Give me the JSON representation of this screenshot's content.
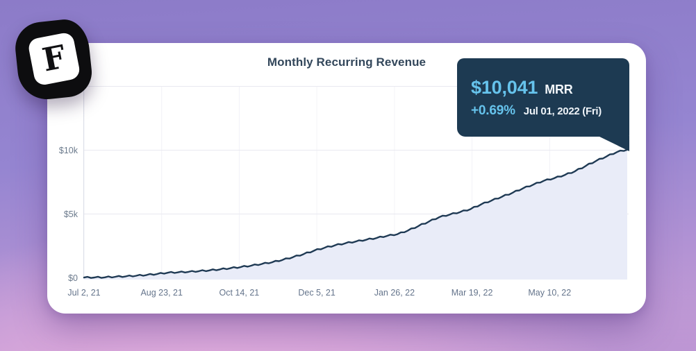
{
  "logo": {
    "letter": "F"
  },
  "tooltip": {
    "value": "$10,041",
    "label": "MRR",
    "delta": "+0.69%",
    "date": "Jul 01, 2022 (Fri)",
    "bg": "#1d3a52",
    "accent": "#66c3ec"
  },
  "chart_data": {
    "type": "area",
    "title": "Monthly Recurring Revenue",
    "x_range_days": 364,
    "ylim": [
      0,
      15200
    ],
    "grid": true,
    "legend_position": "none",
    "x_ticks": [
      {
        "day": 0,
        "label": "Jul 2, 21"
      },
      {
        "day": 52,
        "label": "Aug 23, 21"
      },
      {
        "day": 104,
        "label": "Oct 14, 21"
      },
      {
        "day": 156,
        "label": "Dec 5, 21"
      },
      {
        "day": 208,
        "label": "Jan 26, 22"
      },
      {
        "day": 260,
        "label": "Mar 19, 22"
      },
      {
        "day": 312,
        "label": "May 10, 22"
      }
    ],
    "y_ticks": [
      {
        "value": 0,
        "label": "$0"
      },
      {
        "value": 5000,
        "label": "$5k"
      },
      {
        "value": 10000,
        "label": "$10k"
      }
    ],
    "grid_values": [
      5000,
      10000,
      15000
    ],
    "series": [
      {
        "name": "MRR",
        "unit": "USD",
        "latest_value": 10041,
        "latest_change_pct": 0.69,
        "latest_date": "Jul 01, 2022 (Fri)",
        "points": [
          [
            0,
            20
          ],
          [
            7,
            28
          ],
          [
            14,
            40
          ],
          [
            21,
            80
          ],
          [
            28,
            115
          ],
          [
            35,
            165
          ],
          [
            42,
            225
          ],
          [
            49,
            300
          ],
          [
            56,
            395
          ],
          [
            63,
            430
          ],
          [
            70,
            470
          ],
          [
            77,
            520
          ],
          [
            84,
            580
          ],
          [
            91,
            660
          ],
          [
            98,
            750
          ],
          [
            105,
            840
          ],
          [
            112,
            950
          ],
          [
            119,
            1080
          ],
          [
            126,
            1220
          ],
          [
            133,
            1400
          ],
          [
            140,
            1620
          ],
          [
            147,
            1850
          ],
          [
            154,
            2120
          ],
          [
            161,
            2350
          ],
          [
            168,
            2540
          ],
          [
            175,
            2700
          ],
          [
            182,
            2840
          ],
          [
            189,
            2980
          ],
          [
            196,
            3120
          ],
          [
            203,
            3280
          ],
          [
            210,
            3420
          ],
          [
            217,
            3700
          ],
          [
            224,
            4050
          ],
          [
            231,
            4400
          ],
          [
            238,
            4750
          ],
          [
            245,
            4950
          ],
          [
            252,
            5150
          ],
          [
            259,
            5380
          ],
          [
            266,
            5750
          ],
          [
            273,
            6050
          ],
          [
            280,
            6350
          ],
          [
            287,
            6650
          ],
          [
            294,
            7000
          ],
          [
            301,
            7300
          ],
          [
            308,
            7600
          ],
          [
            315,
            7800
          ],
          [
            322,
            8050
          ],
          [
            329,
            8350
          ],
          [
            336,
            8750
          ],
          [
            343,
            9150
          ],
          [
            350,
            9500
          ],
          [
            357,
            9850
          ],
          [
            364,
            10041
          ]
        ]
      }
    ],
    "colors": {
      "line": "#1f3a54",
      "fill": "#e9ecf8",
      "grid": "#e9e9f0",
      "grid_vertical": "#f2f2f7",
      "axis": "#dcdfe7",
      "tick_text": "#6b7a8c",
      "title": "#33475b"
    }
  }
}
